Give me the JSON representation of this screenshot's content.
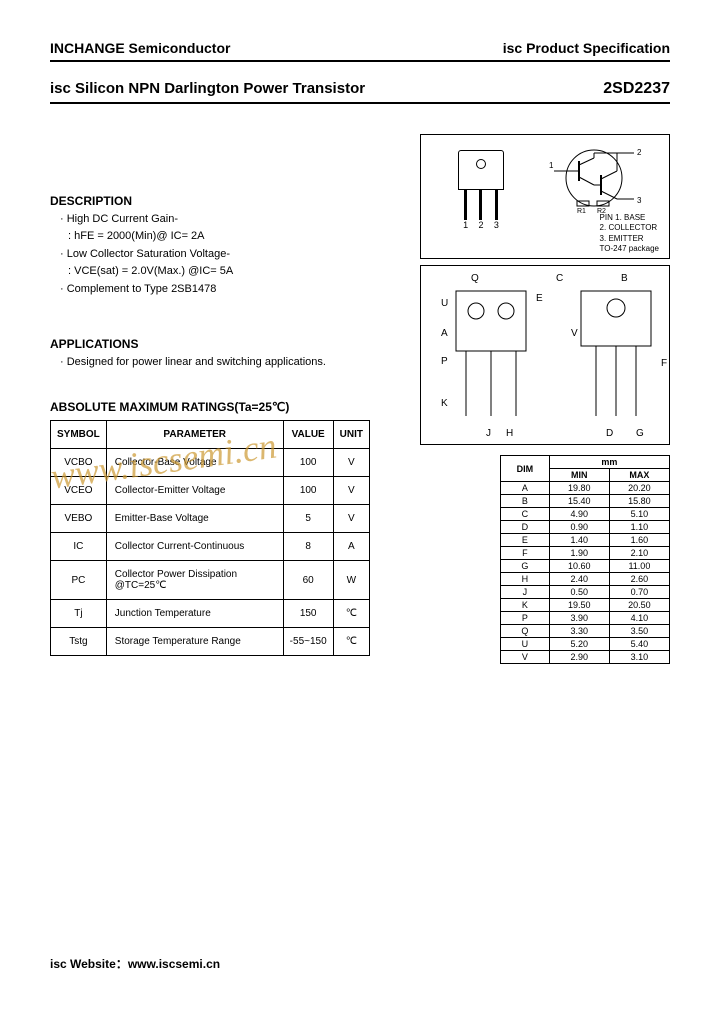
{
  "header": {
    "company": "INCHANGE Semiconductor",
    "spec": "isc Product Specification"
  },
  "title": {
    "product": "isc Silicon NPN Darlington Power Transistor",
    "partno": "2SD2237"
  },
  "description": {
    "heading": "DESCRIPTION",
    "items": [
      "· High DC Current Gain-",
      "  : hFE = 2000(Min)@ IC= 2A",
      "· Low Collector Saturation Voltage-",
      "  : VCE(sat) = 2.0V(Max.) @IC= 5A",
      "· Complement to Type 2SB1478"
    ]
  },
  "applications": {
    "heading": "APPLICATIONS",
    "items": [
      "· Designed for power linear and switching applications."
    ]
  },
  "ratings": {
    "heading": "ABSOLUTE MAXIMUM RATINGS(Ta=25℃)",
    "columns": [
      "SYMBOL",
      "PARAMETER",
      "VALUE",
      "UNIT"
    ],
    "rows": [
      [
        "VCBO",
        "Collector-Base Voltage",
        "100",
        "V"
      ],
      [
        "VCEO",
        "Collector-Emitter Voltage",
        "100",
        "V"
      ],
      [
        "VEBO",
        "Emitter-Base Voltage",
        "5",
        "V"
      ],
      [
        "IC",
        "Collector Current-Continuous",
        "8",
        "A"
      ],
      [
        "PC",
        "Collector Power Dissipation @TC=25℃",
        "60",
        "W"
      ],
      [
        "Tj",
        "Junction Temperature",
        "150",
        "℃"
      ],
      [
        "Tstg",
        "Storage Temperature Range",
        "-55~150",
        "℃"
      ]
    ]
  },
  "package": {
    "lead_nums": [
      "1",
      "2",
      "3"
    ],
    "pins_header": "PIN",
    "pins": [
      "1. BASE",
      "2. COLLECTOR",
      "3. EMITTER"
    ],
    "pkg_type": "TO-247 package",
    "schematic_nodes": [
      "1",
      "2",
      "3"
    ],
    "schematic_labels": [
      "R1",
      "R2"
    ]
  },
  "mechanical": {
    "labels": [
      "Q",
      "C",
      "B",
      "U",
      "A",
      "P",
      "K",
      "E",
      "V",
      "F",
      "J",
      "H",
      "D",
      "G"
    ]
  },
  "dimensions": {
    "unit": "mm",
    "columns": [
      "DIM",
      "MIN",
      "MAX"
    ],
    "rows": [
      [
        "A",
        "19.80",
        "20.20"
      ],
      [
        "B",
        "15.40",
        "15.80"
      ],
      [
        "C",
        "4.90",
        "5.10"
      ],
      [
        "D",
        "0.90",
        "1.10"
      ],
      [
        "E",
        "1.40",
        "1.60"
      ],
      [
        "F",
        "1.90",
        "2.10"
      ],
      [
        "G",
        "10.60",
        "11.00"
      ],
      [
        "H",
        "2.40",
        "2.60"
      ],
      [
        "J",
        "0.50",
        "0.70"
      ],
      [
        "K",
        "19.50",
        "20.50"
      ],
      [
        "P",
        "3.90",
        "4.10"
      ],
      [
        "Q",
        "3.30",
        "3.50"
      ],
      [
        "U",
        "5.20",
        "5.40"
      ],
      [
        "V",
        "2.90",
        "3.10"
      ]
    ]
  },
  "watermark": "www.iscsemi.cn",
  "footer": {
    "label": "isc Website：",
    "url": "www.iscsemi.cn"
  }
}
